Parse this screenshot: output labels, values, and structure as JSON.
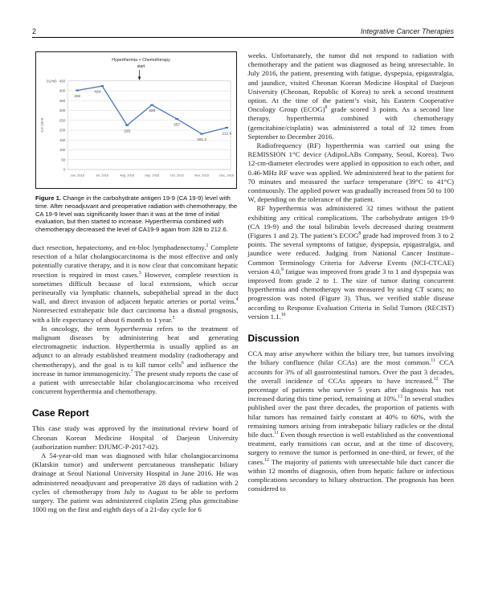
{
  "header": {
    "page_number": "2",
    "journal_title": "Integrative Cancer Therapies"
  },
  "chart_data": {
    "type": "line",
    "title": "Hyperthermia + Chemotherapy",
    "annotation": "start",
    "annotation_x_fraction": 0.44,
    "ylabel": "CA 19-9",
    "y_unit": "(IU/ml)",
    "categories": [
      "Jan. 2016",
      "Jul. 2016",
      "Aug. 2016",
      "Sep. 2016",
      "Oct. 2016",
      "Nov. 2016",
      "Dec. 2016"
    ],
    "series": [
      {
        "name": "CA 19-9",
        "values": [
          402,
          424,
          225,
          328,
          257,
          181.2,
          212.6
        ]
      }
    ],
    "data_labels": [
      "402",
      "424",
      "225",
      "328",
      "257",
      "181.2",
      "212.6"
    ],
    "ylim": [
      0,
      450
    ],
    "ytick_step": 50,
    "grid": true,
    "legend": "none",
    "line_color": "#4472c4",
    "grid_color": "#d9d9d9",
    "plot_border_color": "#bfbfbf",
    "tick_text_color": "#595959"
  },
  "figure": {
    "caption": [
      {
        "t": "Figure 1.",
        "b": true
      },
      {
        "t": "  Change in the carbohydrate antigen 19-9 (CA 19-9) level with time. After neoadjuvant and preoperative radiation with chemotherapy, the CA 19-9 level was significantly lower than it was at the time of initial evaluation, but then started to increase. Hyperthermia combined with chemotherapy decreased the level of CA19-9 again from 328 to 212.6."
      }
    ]
  },
  "left_column": {
    "para1": [
      {
        "t": "duct resection, hepatectomy, and en-bloc lymphadenectomy."
      },
      {
        "t": "2",
        "sup": true
      },
      {
        "t": " Complete resection of a hilar cholangiocarcinoma is the most effective and only potentially curative therapy, and it is now clear that concomitant hepatic resection is required in most cases."
      },
      {
        "t": "3",
        "sup": true
      },
      {
        "t": " However, complete resection is sometimes difficult because of local extensions, which occur perineurally via lymphatic channels, subepithelial spread in the duct wall, and direct invasion of adjacent hepatic arteries or portal veins."
      },
      {
        "t": "4",
        "sup": true
      },
      {
        "t": " Nonresected extrahepatic bile duct carcinoma has a dismal prognosis, with a life expectancy of about 6 month to 1 year."
      },
      {
        "t": "5",
        "sup": true
      }
    ],
    "para2": [
      {
        "t": "In oncology, the term "
      },
      {
        "t": "hyperthermia",
        "i": true
      },
      {
        "t": " refers to the treatment of malignant diseases by administering heat and generating electromagnetic induction. Hyperthermia is usually applied as an adjunct to an already established treatment modality (radiotherapy and chemotherapy), and the goal is to kill tumor cells"
      },
      {
        "t": "6",
        "sup": true
      },
      {
        "t": " and influence the increase in tumor immunogenicity."
      },
      {
        "t": "7",
        "sup": true
      },
      {
        "t": " The present study reports the case of a patient with unresectable hilar cholangiocarcinoma who received concurrent hyperthermia and chemotherapy."
      }
    ],
    "section_heading": "Case Report",
    "para3": [
      {
        "t": "This case study was approved by the institutional review board of Cheonan Korean Medicine Hospital of Daejeon University (authorization number: DJUMC-P-2017-02)."
      }
    ],
    "para4": [
      {
        "t": "A 54-year-old man was diagnosed with hilar cholangiocarcinoma (Klatskin tumor) and underwent percutaneous transhepatic biliary drainage at Seoul National University Hospital in June 2016. He was administered neoadjuvant and preoperative 28 days of radiation with 2 cycles of chemotherapy from July to August to be able to perform surgery. The patient was administered cisplatin 25mg plus gemcitabine 1000 mg on the first and eighth days of a 21-day cycle for 6"
      }
    ]
  },
  "right_column": {
    "para1": [
      {
        "t": "weeks. Unfortunately, the tumor did not respond to radiation with chemotherapy and the patient was diagnosed as being unresectable. In July 2016, the patient, presenting with fatigue, dyspepsia, epigastralgia, and jaundice, visited Cheonan Korean Medicine Hospital of Daejeon University (Cheonan, Republic of Korea) to seek a second treatment option. At the time of the patient’s visit, his Eastern Cooperative Oncology Group (ECOG)"
      },
      {
        "t": "8",
        "sup": true
      },
      {
        "t": " grade scored 3 points. As a second line therapy, hyperthermia combined with chemotherapy (gemcitabine/cisplatin) was administered a total of 32 times from September to December 2016."
      }
    ],
    "para2": [
      {
        "t": "Radiofrequency (RF) hyperthermia was carried out using the REMISSION 1°C device (AdipoLABs Company, Seoul, Korea). Two 12-cm-diameter electrodes were applied in opposition to each other, and 0.46-MHz RF wave was applied. We administered heat to the patient for 70 minutes and measured the surface temperature (39°C to 41°C) continuously. The applied power was gradually increased from 50 to 100 W, depending on the tolerance of the patient."
      }
    ],
    "para3": [
      {
        "t": "RF hyperthermia was administered 32 times without the patient exhibiting any critical complications. The carbohydrate antigen 19-9 (CA 19-9) and the total bilirubin levels decreased during treatment (Figures 1 and 2). The patient’s ECOG"
      },
      {
        "t": "8",
        "sup": true
      },
      {
        "t": " grade had improved from 3 to 2 points. The several symptoms of fatigue, dyspepsia, epigastralgia, and jaundice were reduced. Judging from National Cancer Institute–Common Terminology Criteria for Adverse Events (NCI-CTCAE) version 4.0,"
      },
      {
        "t": "9",
        "sup": true
      },
      {
        "t": " fatigue was improved from grade 3 to 1 and dyspepsia was improved from grade 2 to 1. The size of tumor during concurrent hyperthermia and chemotherapy was measured by using CT scans; no progression was noted (Figure 3). Thus, we verified stable disease according to Response Evaluation Criteria in Solid Tumors (RECIST) version 1.1."
      },
      {
        "t": "10",
        "sup": true
      }
    ],
    "section_heading": "Discussion",
    "para4": [
      {
        "t": "CCA may arise anywhere within the biliary tree, but tumors involving the biliary confluence (hilar CCAs) are the most common."
      },
      {
        "t": "11",
        "sup": true
      },
      {
        "t": " CCA accounts for 3% of all gastrointestinal tumors. Over the past 3 decades, the overall incidence of CCAs appears to have increased."
      },
      {
        "t": "12",
        "sup": true
      },
      {
        "t": " The percentage of patients who survive 5 years after diagnosis has not increased during this time period, remaining at 10%."
      },
      {
        "t": "13",
        "sup": true
      },
      {
        "t": " In several studies published over the past three decades, the proportion of patients with hilar tumors has remained fairly constant at 40% to 60%, with the remaining tumors arising from intrahepatic biliary radicles or the distal bile duct."
      },
      {
        "t": "11",
        "sup": true
      },
      {
        "t": " Even though resection is well established as the conventional treatment, early transitions can occur, and at the time of discovery, surgery to remove the tumor is performed in one-third, or fewer, of the cases."
      },
      {
        "t": "12",
        "sup": true
      },
      {
        "t": " The majority of patients with unresectable bile duct cancer die within 12 months of diagnosis, often from hepatic failure or infectious complications secondary to biliary obstruction. The prognosis has been considered to"
      }
    ]
  }
}
